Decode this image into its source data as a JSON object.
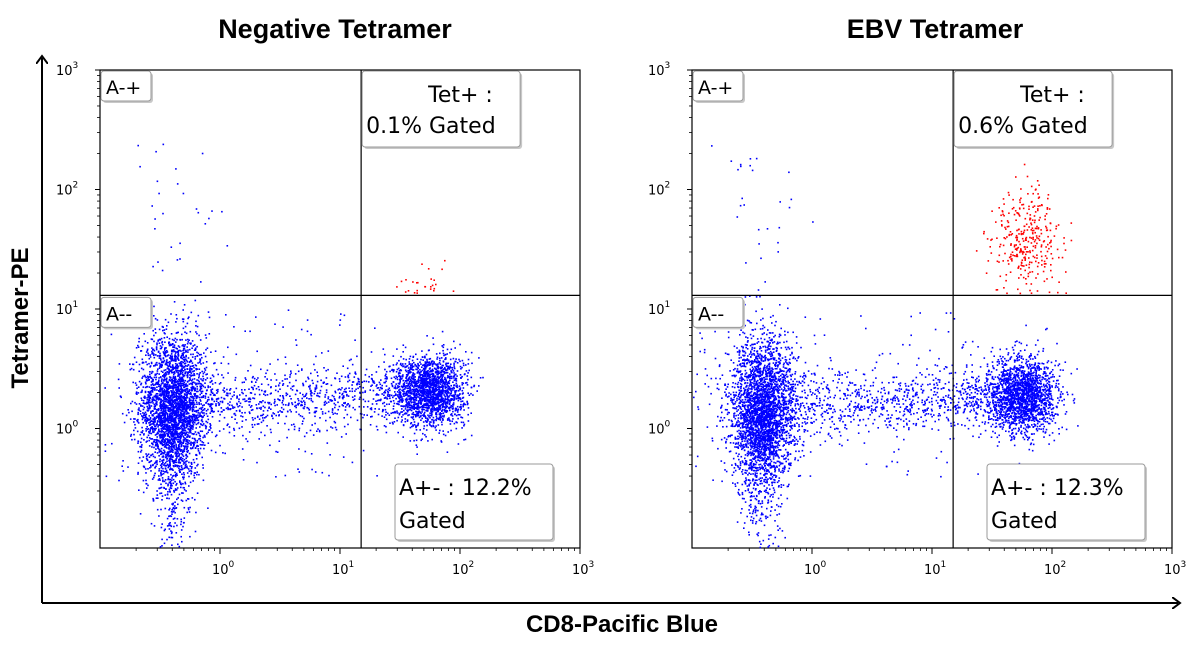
{
  "axes": {
    "x_title": "CD8-Pacific Blue",
    "y_title": "Tetramer-PE"
  },
  "chart_data": [
    {
      "type": "scatter",
      "title": "Negative Tetramer",
      "xlabel": "CD8-Pacific Blue",
      "ylabel": "Tetramer-PE",
      "xscale": "log",
      "yscale": "log",
      "xlim": [
        0.1,
        1000
      ],
      "ylim": [
        0.1,
        1000
      ],
      "x_ticks": [
        "10^0",
        "10^1",
        "10^2",
        "10^3"
      ],
      "y_ticks": [
        "10^0",
        "10^1",
        "10^2",
        "10^3"
      ],
      "quadrant_gate": {
        "x": 15,
        "y": 13
      },
      "quadrant_labels": {
        "upper_left": "A-+",
        "lower_left": "A--"
      },
      "gates": [
        {
          "name": "Tet+",
          "line1": "Tet+ :",
          "line2": "0.1% Gated",
          "percent": 0.1,
          "color": "#ff0000"
        },
        {
          "name": "A+-",
          "line1": "A+- : 12.2%",
          "line2": "Gated",
          "percent": 12.2,
          "color": "#0000ff"
        }
      ],
      "series": [
        {
          "color": "#0000ff",
          "center_x": 0.4,
          "center_y": 1.6,
          "spread_x": 0.14,
          "spread_y": 0.3
        },
        {
          "color": "#0000ff",
          "center_x": 55,
          "center_y": 2.1,
          "spread_x": 0.15,
          "spread_y": 0.15
        },
        {
          "color": "#ff0000",
          "center_x": 55,
          "center_y": 16,
          "spread_x": 0.12,
          "spread_y": 0.08,
          "fraction_of_cd8": 0.001
        }
      ]
    },
    {
      "type": "scatter",
      "title": "EBV Tetramer",
      "xlabel": "CD8-Pacific Blue",
      "ylabel": "Tetramer-PE",
      "xscale": "log",
      "yscale": "log",
      "xlim": [
        0.1,
        1000
      ],
      "ylim": [
        0.1,
        1000
      ],
      "x_ticks": [
        "10^0",
        "10^1",
        "10^2",
        "10^3"
      ],
      "y_ticks": [
        "10^0",
        "10^1",
        "10^2",
        "10^3"
      ],
      "quadrant_gate": {
        "x": 15,
        "y": 13
      },
      "quadrant_labels": {
        "upper_left": "A-+",
        "lower_left": "A--"
      },
      "gates": [
        {
          "name": "Tet+",
          "line1": "Tet+ :",
          "line2": "0.6% Gated",
          "percent": 0.6,
          "color": "#ff0000"
        },
        {
          "name": "A+-",
          "line1": "A+- : 12.3%",
          "line2": "Gated",
          "percent": 12.3,
          "color": "#0000ff"
        }
      ],
      "series": [
        {
          "color": "#0000ff",
          "center_x": 0.38,
          "center_y": 1.5,
          "spread_x": 0.14,
          "spread_y": 0.3
        },
        {
          "color": "#0000ff",
          "center_x": 55,
          "center_y": 1.9,
          "spread_x": 0.15,
          "spread_y": 0.16
        },
        {
          "color": "#ff0000",
          "center_x": 60,
          "center_y": 40,
          "spread_x": 0.14,
          "spread_y": 0.22,
          "fraction_of_cd8": 0.006
        }
      ]
    }
  ]
}
